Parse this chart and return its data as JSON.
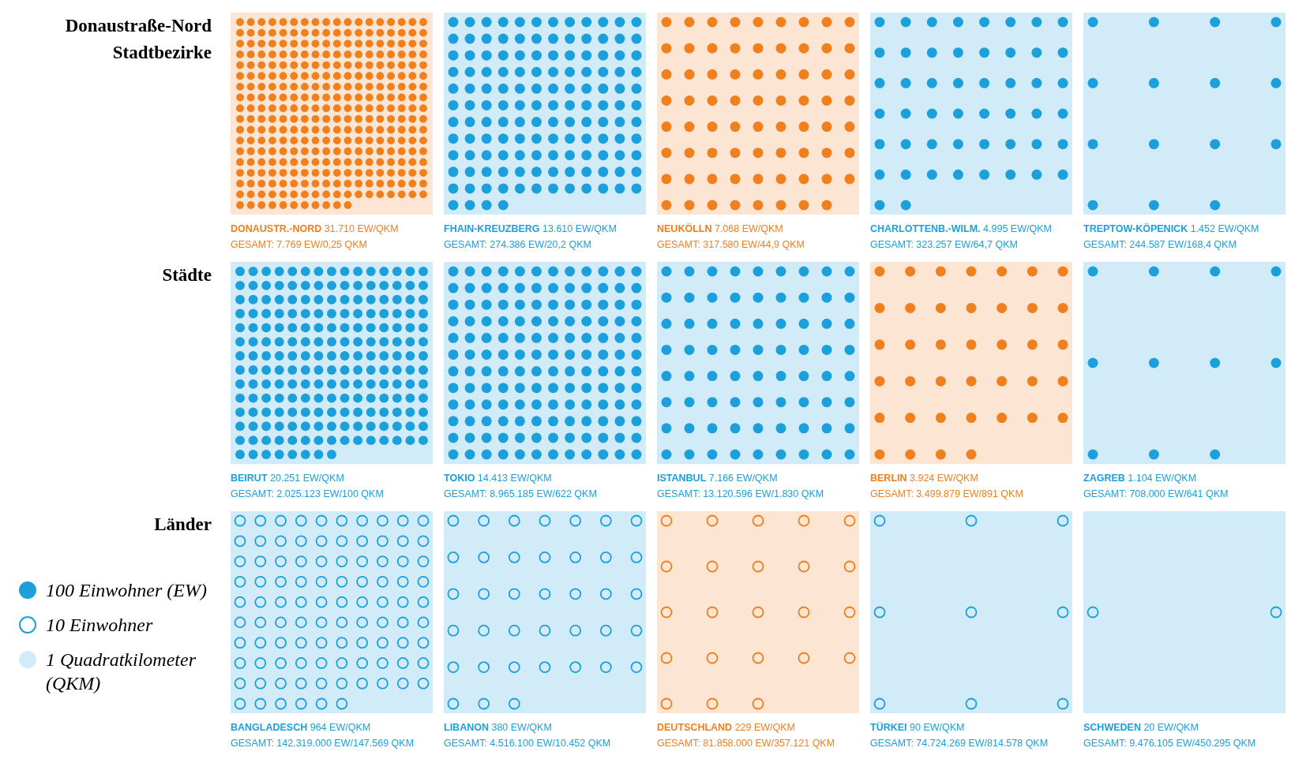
{
  "chart_data": [
    {
      "type": "other",
      "title": "Donaustraße-Nord Stadtbezirke",
      "categories": [
        "DONAUSTR.-NORD",
        "FHAIN-KREUZBERG",
        "NEUKÖLLN",
        "CHARLOTTENB.-WILM.",
        "TREPTOW-KÖPENICK"
      ],
      "values": [
        31710,
        13610,
        7068,
        4995,
        1452
      ],
      "value_labels": [
        "31.710 EW/QKM",
        "13.610 EW/QKM",
        "7.068 EW/QKM",
        "4.995 EW/QKM",
        "1.452 EW/QKM"
      ],
      "colors": [
        "#f07f1e",
        "#1ba0dc",
        "#f07f1e",
        "#1ba0dc",
        "#1ba0dc"
      ],
      "annotations": [
        "GESAMT: 7.769 EW/0,25 QKM",
        "GESAMT: 274.386 EW/20,2 QKM",
        "GESAMT: 317.580 EW/44,9 QKM",
        "GESAMT: 323.257 EW/64,7 QKM",
        "GESAMT: 244.587 EW/168,4 QKM"
      ]
    },
    {
      "type": "other",
      "title": "Städte",
      "categories": [
        "BEIRUT",
        "TOKIO",
        "ISTANBUL",
        "BERLIN",
        "ZAGREB"
      ],
      "values": [
        20251,
        14413,
        7166,
        3924,
        1104
      ],
      "value_labels": [
        "20.251 EW/QKM",
        "14.413 EW/QKM",
        "7.166 EW/QKM",
        "3.924 EW/QKM",
        "1.104 EW/QKM"
      ],
      "colors": [
        "#1ba0dc",
        "#1ba0dc",
        "#1ba0dc",
        "#f07f1e",
        "#1ba0dc"
      ],
      "annotations": [
        "GESAMT: 2.025.123 EW/100 QKM",
        "GESAMT: 8.965.185 EW/622 QKM",
        "GESAMT: 13.120.596 EW/1.830 QKM",
        "GESAMT: 3.499.879 EW/891 QKM",
        "GESAMT: 708.000 EW/641 QKM"
      ]
    },
    {
      "type": "other",
      "title": "Länder",
      "categories": [
        "BANGLADESCH",
        "LIBANON",
        "DEUTSCHLAND",
        "TÜRKEI",
        "SCHWEDEN"
      ],
      "values": [
        964,
        380,
        229,
        90,
        20
      ],
      "value_labels": [
        "964 EW/QKM",
        "380 EW/QKM",
        "229 EW/QKM",
        "90 EW/QKM",
        "20 EW/QKM"
      ],
      "colors": [
        "#1ba0dc",
        "#1ba0dc",
        "#f07f1e",
        "#1ba0dc",
        "#1ba0dc"
      ],
      "annotations": [
        "GESAMT: 142.319.000 EW/147.569 QKM",
        "GESAMT: 4.516.100 EW/10.452 QKM",
        "GESAMT: 81.858.000 EW/357.121 QKM",
        "GESAMT: 74.724.269 EW/814.578 QKM",
        "GESAMT: 9.476.105 EW/450.295 QKM"
      ]
    },
    {
      "type": "other",
      "annotations": [
        "100 Einwohner (EW)",
        "10 Einwohner",
        "1 Quadratkilometer (QKM)"
      ]
    }
  ]
}
